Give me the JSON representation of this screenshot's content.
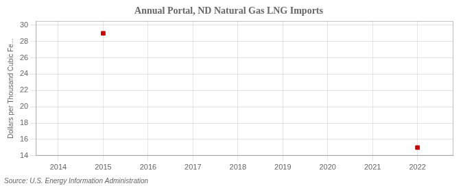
{
  "chart_data": {
    "type": "scatter",
    "title": "Annual Portal, ND Natural Gas LNG Imports",
    "ylabel": "Dollars per Thousand Cubic Fe...",
    "source": "Source: U.S. Energy Information Administration",
    "x": [
      2015,
      2022
    ],
    "values": [
      29.0,
      15.0
    ],
    "color": "#cc0000",
    "marker": "square",
    "xlim": [
      2013.5,
      2022.8
    ],
    "ylim": [
      14,
      30.5
    ],
    "xticks": [
      2014,
      2015,
      2016,
      2017,
      2018,
      2019,
      2020,
      2021,
      2022
    ],
    "yticks": [
      14,
      16,
      18,
      20,
      22,
      24,
      26,
      28,
      30
    ],
    "grid": true
  }
}
